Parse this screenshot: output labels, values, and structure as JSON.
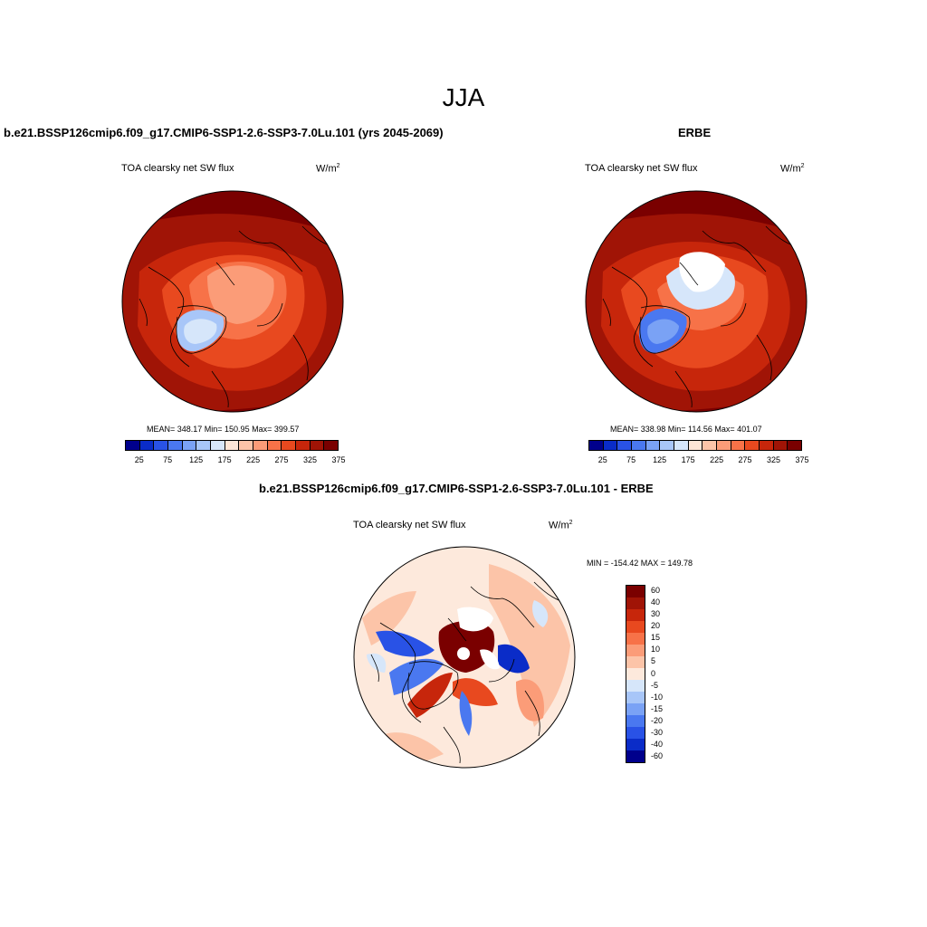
{
  "season": "JJA",
  "panels": [
    {
      "title": "b.e21.BSSP126cmip6.f09_g17.CMIP6-SSP1-2.6-SSP3-7.0Lu.101 (yrs 2045-2069)",
      "variable": "TOA clearsky net SW flux",
      "units": "W/m",
      "units_exp": "2",
      "stats": "MEAN= 348.17  Min= 150.95  Max= 399.57",
      "colorbar": {
        "colors": [
          "#00008c",
          "#0a2cc8",
          "#2952e6",
          "#4a78f0",
          "#7aa2f5",
          "#a8c6f8",
          "#d6e6fa",
          "#fde5d6",
          "#fcc4a8",
          "#fb9c78",
          "#f77248",
          "#e8491f",
          "#c7260b",
          "#a01406",
          "#7a0000"
        ],
        "labels": [
          "25",
          "75",
          "125",
          "175",
          "225",
          "275",
          "325",
          "375"
        ]
      }
    },
    {
      "title": "ERBE",
      "variable": "TOA clearsky net SW flux",
      "units": "W/m",
      "units_exp": "2",
      "stats": "MEAN= 338.98  Min= 114.56  Max= 401.07",
      "colorbar": {
        "colors": [
          "#00008c",
          "#0a2cc8",
          "#2952e6",
          "#4a78f0",
          "#7aa2f5",
          "#a8c6f8",
          "#d6e6fa",
          "#fde5d6",
          "#fcc4a8",
          "#fb9c78",
          "#f77248",
          "#e8491f",
          "#c7260b",
          "#a01406",
          "#7a0000"
        ],
        "labels": [
          "25",
          "75",
          "125",
          "175",
          "225",
          "275",
          "325",
          "375"
        ]
      }
    },
    {
      "title": "b.e21.BSSP126cmip6.f09_g17.CMIP6-SSP1-2.6-SSP3-7.0Lu.101 - ERBE",
      "variable": "TOA clearsky net SW flux",
      "units": "W/m",
      "units_exp": "2",
      "stats": "MIN = -154.42 MAX = 149.78",
      "colorbar": {
        "colors": [
          "#7a0000",
          "#a01406",
          "#c7260b",
          "#e8491f",
          "#f77248",
          "#fb9c78",
          "#fcc4a8",
          "#fde9dc",
          "#d6e6fa",
          "#a8c6f8",
          "#7aa2f5",
          "#4a78f0",
          "#2952e6",
          "#0a2cc8",
          "#00008c"
        ],
        "labels": [
          "60",
          "40",
          "30",
          "20",
          "15",
          "10",
          "5",
          "0",
          "-5",
          "-10",
          "-15",
          "-20",
          "-30",
          "-40",
          "-60"
        ]
      }
    }
  ]
}
